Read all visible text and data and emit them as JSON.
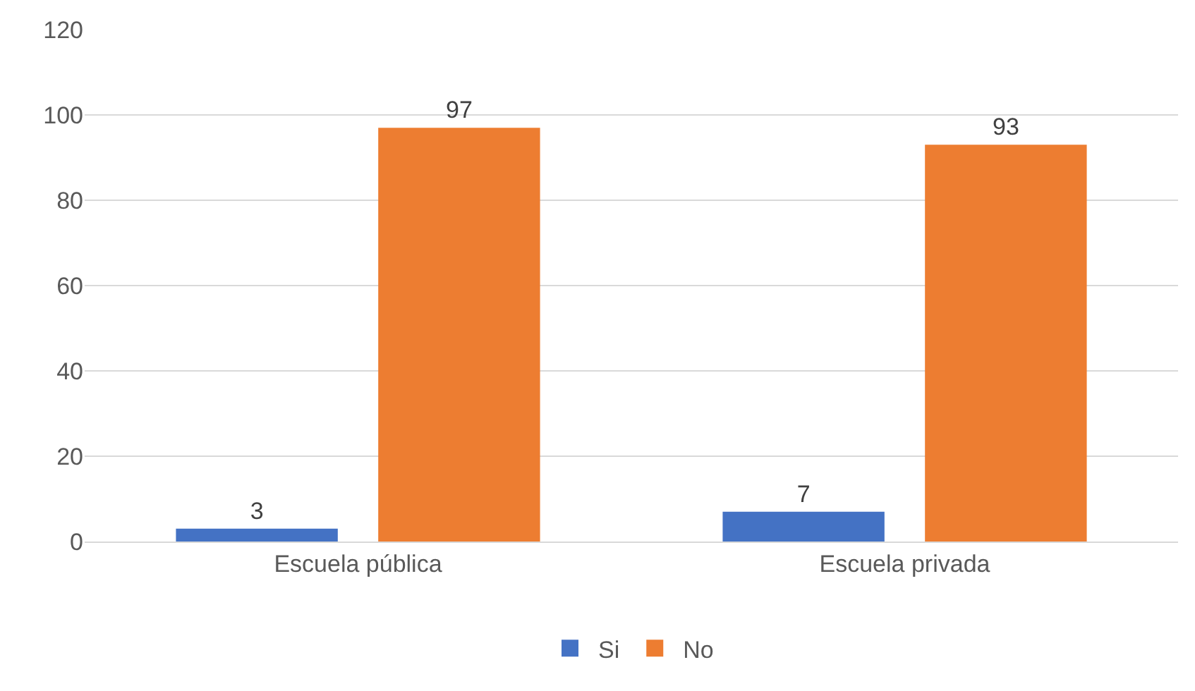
{
  "chart_data": {
    "type": "bar",
    "categories": [
      "Escuela pública",
      "Escuela privada"
    ],
    "series": [
      {
        "name": "Si",
        "color": "#4472c4",
        "values": [
          3,
          7
        ]
      },
      {
        "name": "No",
        "color": "#ed7d31",
        "values": [
          97,
          93
        ]
      }
    ],
    "ylim": [
      0,
      120
    ],
    "yticks": [
      0,
      20,
      40,
      60,
      80,
      100,
      120
    ],
    "grid": "y",
    "legend": "bottom",
    "data_labels": true
  }
}
